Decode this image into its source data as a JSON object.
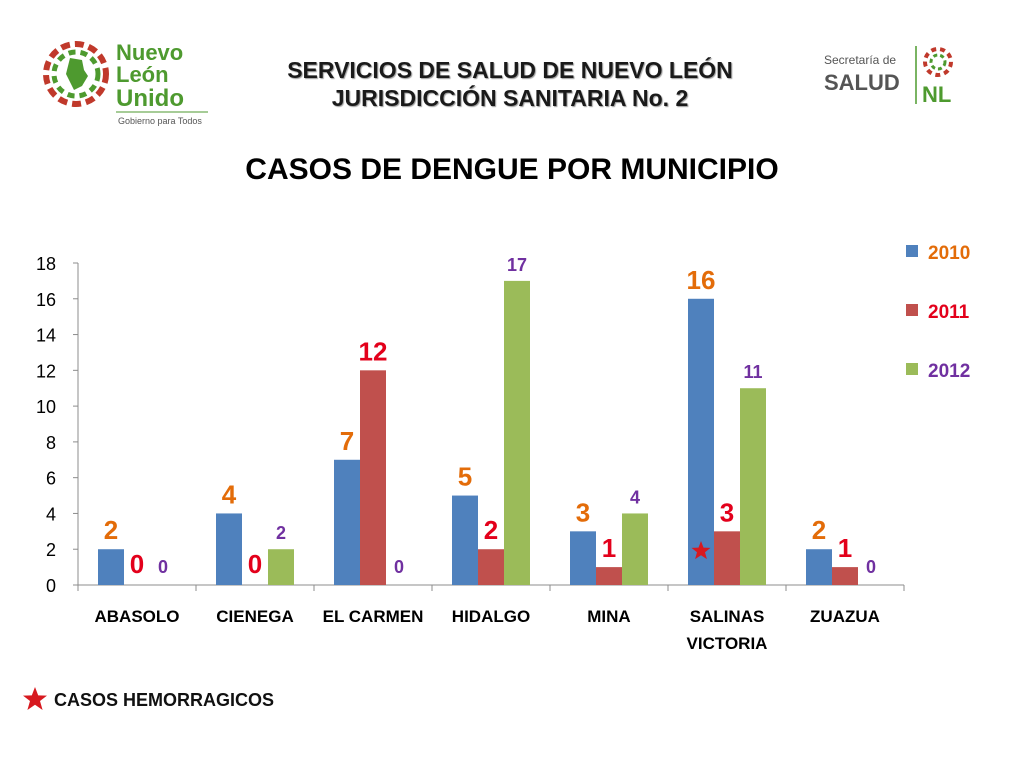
{
  "header": {
    "line1": "SERVICIOS DE SALUD DE NUEVO LEÓN",
    "line2": "JURISDICCIÓN SANITARIA  No. 2"
  },
  "logo_left": {
    "word1": "Nuevo",
    "word2": "León",
    "word3": "Unido",
    "tagline": "Gobierno para Todos",
    "icon": "nuevo-leon-map-emblem"
  },
  "logo_right": {
    "line1": "Secretaría de",
    "line2": "SALUD",
    "abbrev": "NL",
    "icon": "flower-emblem"
  },
  "footnote": {
    "text": "CASOS  HEMORRAGICOS",
    "icon": "red-star-icon"
  },
  "colors": {
    "series_2010": "#4f81bd",
    "series_2011": "#c0504d",
    "series_2012": "#9bbb59",
    "label_2010": "#e36c09",
    "label_2011": "#e3001b",
    "label_2012": "#7030a0",
    "green_brand": "#4e9a2f",
    "star": "#d7191f"
  },
  "chart_data": {
    "type": "bar",
    "title": "CASOS DE DENGUE POR MUNICIPIO",
    "categories": [
      "ABASOLO",
      "CIENEGA",
      "EL CARMEN",
      "HIDALGO",
      "MINA",
      "SALINAS VICTORIA",
      "ZUAZUA"
    ],
    "series": [
      {
        "name": "2010",
        "values": [
          2,
          4,
          7,
          5,
          3,
          16,
          2
        ]
      },
      {
        "name": "2011",
        "values": [
          0,
          0,
          12,
          2,
          1,
          3,
          1
        ]
      },
      {
        "name": "2012",
        "values": [
          0,
          2,
          0,
          17,
          4,
          11,
          0
        ]
      }
    ],
    "ylim": [
      0,
      18
    ],
    "yticks": [
      0,
      2,
      4,
      6,
      8,
      10,
      12,
      14,
      16,
      18
    ],
    "grid": false,
    "legend": "top-right",
    "annotations": [
      {
        "category": "SALINAS VICTORIA",
        "series": "2010",
        "marker": "star",
        "meaning": "CASOS  HEMORRAGICOS"
      }
    ]
  }
}
